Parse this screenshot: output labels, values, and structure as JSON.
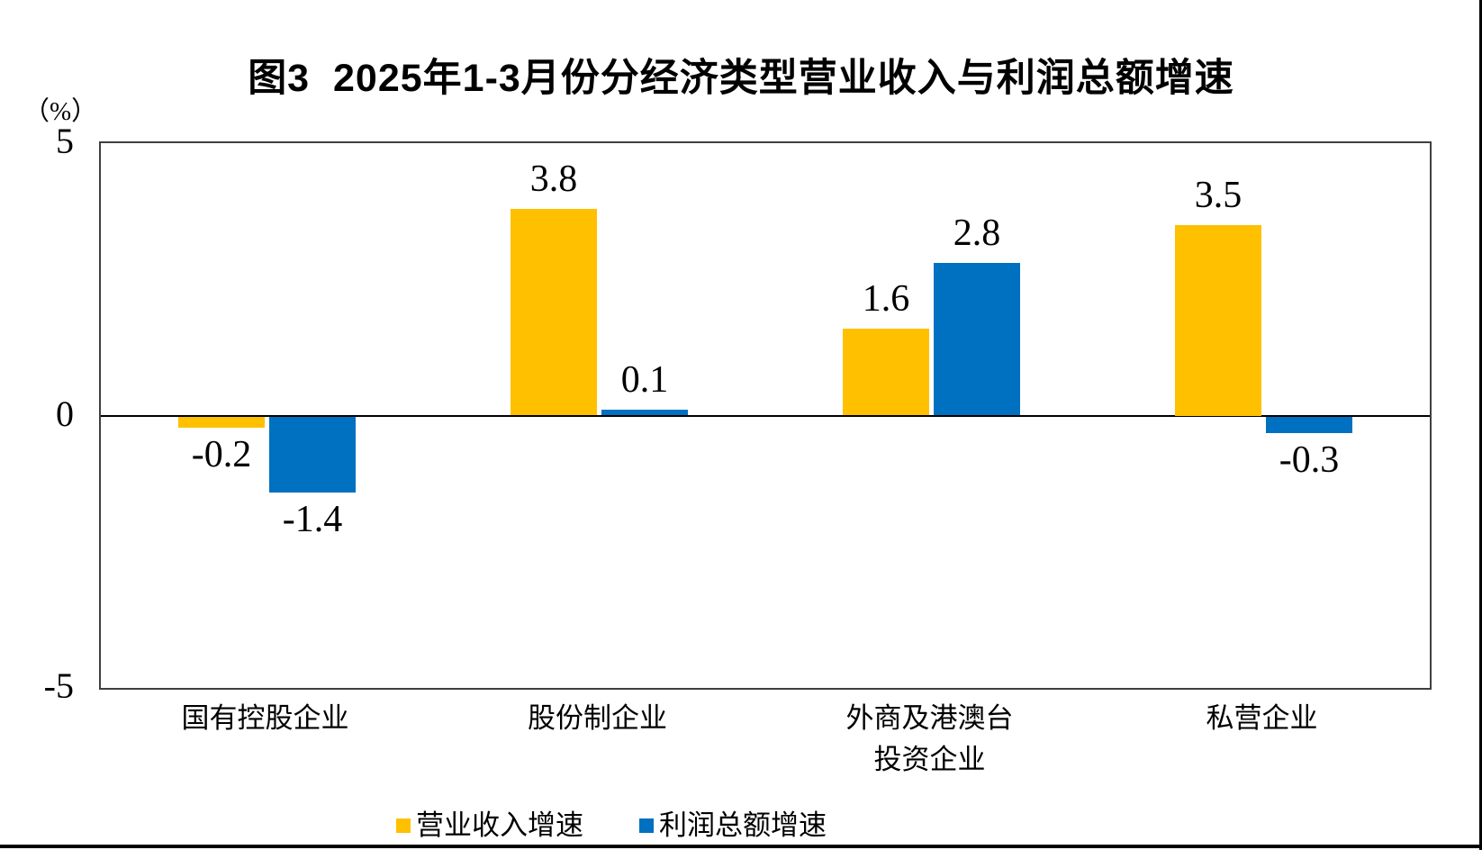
{
  "figure": {
    "title": "图3  2025年1-3月份分经济类型营业收入与利润总额增速",
    "unit_label": "（%）"
  },
  "chart_data": {
    "type": "bar",
    "title": "图3 2025年1-3月份分经济类型营业收入与利润总额增速",
    "unit": "%",
    "categories": [
      "国有控股企业",
      "股份制企业",
      "外商及港澳台\n投资企业",
      "私营企业"
    ],
    "series": [
      {
        "name": "营业收入增速",
        "color": "#FFC000",
        "values": [
          -0.2,
          3.8,
          1.6,
          3.5
        ]
      },
      {
        "name": "利润总额增速",
        "color": "#0070C0",
        "values": [
          -1.4,
          0.1,
          2.8,
          -0.3
        ]
      }
    ],
    "data_labels": [
      "-0.2",
      "-1.4",
      "3.8",
      "0.1",
      "1.6",
      "2.8",
      "3.5",
      "-0.3"
    ],
    "ylim": [
      -5,
      5
    ],
    "yticks": [
      5,
      0,
      -5
    ],
    "grid": false,
    "legend_position": "bottom",
    "colors": {
      "bar_revenue": "#FFC000",
      "bar_profit": "#0070C0",
      "axis": "#000000",
      "plot_border": "#3f3f3f"
    }
  }
}
